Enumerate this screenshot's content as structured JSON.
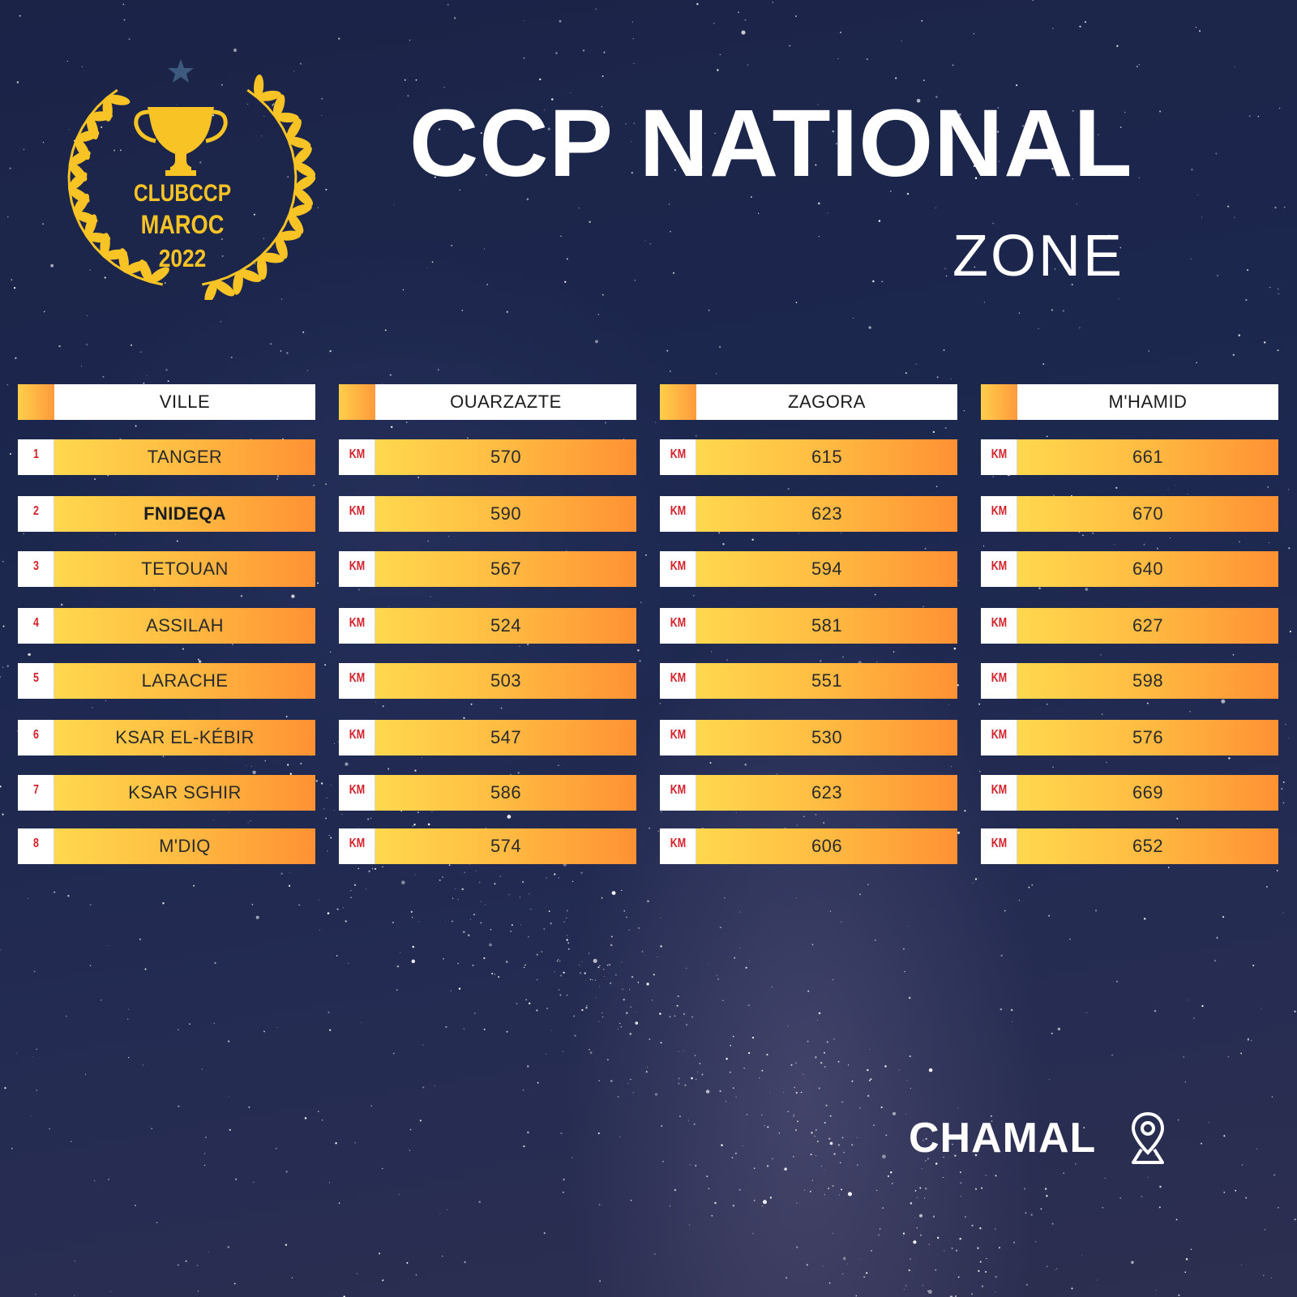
{
  "logo": {
    "line1": "CLUBCCP",
    "line2": "MAROC",
    "line3": "2022",
    "icons": [
      "trophy-icon",
      "laurel-wreath-icon",
      "star-icon"
    ],
    "color": "#f7c325"
  },
  "title": "CCP NATIONAL",
  "subtitle": "ZONE",
  "table": {
    "columns": [
      {
        "header": "VILLE",
        "rows": [
          {
            "tag": "1",
            "value": "TANGER"
          },
          {
            "tag": "2",
            "value": "FNIDEQA"
          },
          {
            "tag": "3",
            "value": "TETOUAN"
          },
          {
            "tag": "4",
            "value": "ASSILAH"
          },
          {
            "tag": "5",
            "value": "LARACHE"
          },
          {
            "tag": "6",
            "value": "KSAR EL-KÉBIR"
          },
          {
            "tag": "7",
            "value": "KSAR SGHIR"
          },
          {
            "tag": "8",
            "value": "M'DIQ"
          }
        ]
      },
      {
        "header": "OUARZAZTE",
        "rows": [
          {
            "tag": "KM",
            "value": "570"
          },
          {
            "tag": "KM",
            "value": "590"
          },
          {
            "tag": "KM",
            "value": "567"
          },
          {
            "tag": "KM",
            "value": "524"
          },
          {
            "tag": "KM",
            "value": "503"
          },
          {
            "tag": "KM",
            "value": "547"
          },
          {
            "tag": "KM",
            "value": "586"
          },
          {
            "tag": "KM",
            "value": "574"
          }
        ]
      },
      {
        "header": "ZAGORA",
        "rows": [
          {
            "tag": "KM",
            "value": "615"
          },
          {
            "tag": "KM",
            "value": "623"
          },
          {
            "tag": "KM",
            "value": "594"
          },
          {
            "tag": "KM",
            "value": "581"
          },
          {
            "tag": "KM",
            "value": "551"
          },
          {
            "tag": "KM",
            "value": "530"
          },
          {
            "tag": "KM",
            "value": "623"
          },
          {
            "tag": "KM",
            "value": "606"
          }
        ]
      },
      {
        "header": "M'HAMID",
        "rows": [
          {
            "tag": "KM",
            "value": "661"
          },
          {
            "tag": "KM",
            "value": "670"
          },
          {
            "tag": "KM",
            "value": "640"
          },
          {
            "tag": "KM",
            "value": "627"
          },
          {
            "tag": "KM",
            "value": "598"
          },
          {
            "tag": "KM",
            "value": "576"
          },
          {
            "tag": "KM",
            "value": "669"
          },
          {
            "tag": "KM",
            "value": "652"
          }
        ]
      }
    ]
  },
  "footer": {
    "label": "CHAMAL",
    "icon": "location-pin-icon"
  },
  "colors": {
    "background": "#1d2850",
    "row_gradient_start": "#ffd84e",
    "row_gradient_end": "#ff9133",
    "tag_text": "#d4202a",
    "logo_gold": "#f7c325"
  }
}
